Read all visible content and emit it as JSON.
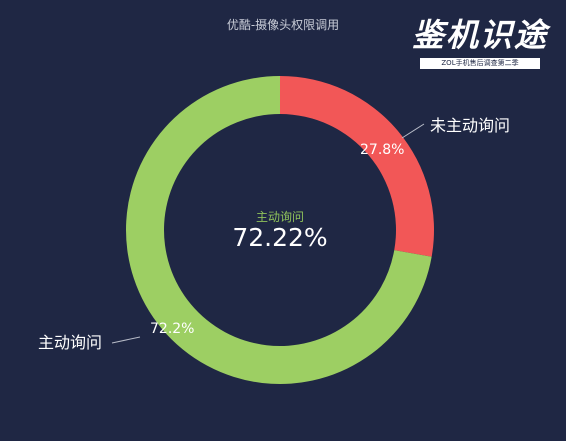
{
  "title": "优酷-摄像头权限调用",
  "brand": {
    "name": "鉴机识途",
    "subtitle": "ZOL手机售后调查第二季"
  },
  "center": {
    "label": "主动询问",
    "value": "72.22%"
  },
  "colors": {
    "background": "#1f2744",
    "green": "#9dcf63",
    "red": "#f25757"
  },
  "chart_data": {
    "type": "pie",
    "title": "优酷-摄像头权限调用",
    "slices": [
      {
        "label": "未主动询问",
        "value": 27.78,
        "display": "27.8%",
        "color": "#f25757"
      },
      {
        "label": "主动询问",
        "value": 72.22,
        "display": "72.2%",
        "color": "#9dcf63"
      }
    ]
  }
}
